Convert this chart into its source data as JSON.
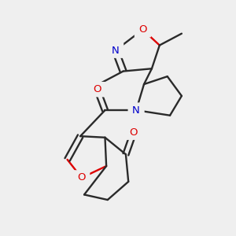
{
  "bg_color": "#efefef",
  "bond_color": "#2a2a2a",
  "o_color": "#dd0000",
  "n_color": "#0000cc",
  "lw": 1.7,
  "dbo": 0.012,
  "fs": 9.5,
  "fig_w": 3.0,
  "fig_h": 3.0,
  "dpi": 100,
  "xlim": [
    0.05,
    0.95
  ],
  "ylim": [
    0.05,
    0.95
  ]
}
